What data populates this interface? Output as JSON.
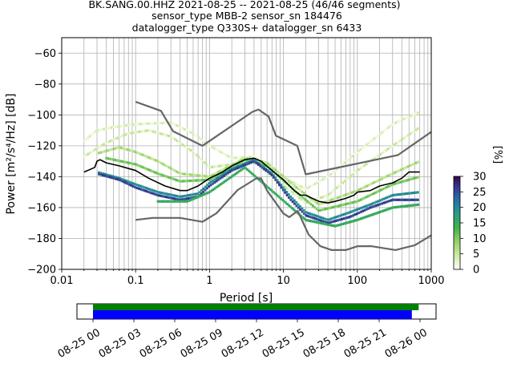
{
  "title_lines": [
    "BK.SANG.00.HHZ   2021-08-25 -- 2021-08-25  (46/46 segments)",
    "sensor_type MBB-2 sensor_sn 184476",
    "datalogger_type Q330S+ datalogger_sn 6433"
  ],
  "colors": {
    "noise_model": "#666666",
    "mode_line": "#000000",
    "grid": "#b0b0b0",
    "timeline_data": "#0000ff",
    "timeline_gaps": "#008000"
  },
  "chart_data": {
    "type": "heatmap",
    "xlabel": "Period [s]",
    "ylabel": "Power [m²/s⁴/Hz] [dB]",
    "x_scale": "log",
    "xlim": [
      0.01,
      1000
    ],
    "ylim": [
      -200,
      -50
    ],
    "x_ticks": [
      {
        "value": 0.01,
        "label": "0.01"
      },
      {
        "value": 0.1,
        "label": "0.1"
      },
      {
        "value": 1,
        "label": "1"
      },
      {
        "value": 10,
        "label": "10"
      },
      {
        "value": 100,
        "label": "100"
      },
      {
        "value": 1000,
        "label": "1000"
      }
    ],
    "y_ticks": [
      -60,
      -80,
      -100,
      -120,
      -140,
      -160,
      -180,
      -200
    ],
    "grid": true,
    "colorbar": {
      "label": "[%]",
      "range": [
        0,
        30
      ],
      "ticks": [
        0,
        5,
        10,
        15,
        20,
        25,
        30
      ]
    },
    "high_noise_model": [
      [
        0.1,
        -91.5
      ],
      [
        0.22,
        -97.4
      ],
      [
        0.32,
        -110.5
      ],
      [
        0.8,
        -120
      ],
      [
        3.8,
        -98
      ],
      [
        4.6,
        -96.5
      ],
      [
        6.3,
        -101
      ],
      [
        7.9,
        -113.5
      ],
      [
        15.4,
        -120
      ],
      [
        20,
        -138.5
      ],
      [
        354.8,
        -126
      ],
      [
        1000,
        -111
      ]
    ],
    "low_noise_model": [
      [
        0.1,
        -168
      ],
      [
        0.17,
        -166.7
      ],
      [
        0.4,
        -166.7
      ],
      [
        0.8,
        -169.2
      ],
      [
        1.24,
        -163.7
      ],
      [
        2.4,
        -148.6
      ],
      [
        4.3,
        -141.1
      ],
      [
        5,
        -141.1
      ],
      [
        6,
        -149
      ],
      [
        10,
        -163.8
      ],
      [
        12,
        -166.2
      ],
      [
        15.6,
        -162.1
      ],
      [
        21.9,
        -177.5
      ],
      [
        31.6,
        -185
      ],
      [
        45,
        -187.5
      ],
      [
        70,
        -187.5
      ],
      [
        101,
        -185
      ],
      [
        154,
        -185
      ],
      [
        328,
        -187.5
      ],
      [
        600,
        -184.4
      ],
      [
        1000,
        -178
      ]
    ],
    "mode_line": [
      [
        0.02,
        -137
      ],
      [
        0.025,
        -135
      ],
      [
        0.028,
        -134
      ],
      [
        0.03,
        -130
      ],
      [
        0.033,
        -129
      ],
      [
        0.04,
        -131
      ],
      [
        0.06,
        -133
      ],
      [
        0.1,
        -136
      ],
      [
        0.15,
        -141
      ],
      [
        0.25,
        -146
      ],
      [
        0.4,
        -149
      ],
      [
        0.5,
        -149
      ],
      [
        0.7,
        -146
      ],
      [
        1,
        -141
      ],
      [
        1.5,
        -137
      ],
      [
        2,
        -133
      ],
      [
        3,
        -129
      ],
      [
        4,
        -128
      ],
      [
        5,
        -130
      ],
      [
        7,
        -136
      ],
      [
        10,
        -142
      ],
      [
        14,
        -149
      ],
      [
        17,
        -152
      ],
      [
        20,
        -152
      ],
      [
        30,
        -156
      ],
      [
        40,
        -157
      ],
      [
        50,
        -156
      ],
      [
        70,
        -154
      ],
      [
        90,
        -152
      ],
      [
        100,
        -150
      ],
      [
        150,
        -149
      ],
      [
        200,
        -146
      ],
      [
        300,
        -144
      ],
      [
        400,
        -141
      ],
      [
        500,
        -137
      ],
      [
        700,
        -137
      ]
    ],
    "psd_bands": [
      {
        "intensity": 0.15,
        "points": [
          [
            0.02,
            -117
          ],
          [
            0.03,
            -110
          ],
          [
            0.05,
            -108
          ],
          [
            0.1,
            -106
          ],
          [
            0.3,
            -105
          ],
          [
            0.6,
            -112
          ],
          [
            1,
            -120
          ],
          [
            2,
            -128
          ],
          [
            4,
            -127
          ],
          [
            8,
            -138
          ],
          [
            20,
            -148
          ],
          [
            40,
            -140
          ],
          [
            100,
            -124
          ],
          [
            300,
            -106
          ],
          [
            700,
            -98
          ]
        ]
      },
      {
        "intensity": 0.2,
        "points": [
          [
            0.02,
            -127
          ],
          [
            0.04,
            -118
          ],
          [
            0.08,
            -112
          ],
          [
            0.15,
            -110
          ],
          [
            0.3,
            -114
          ],
          [
            0.6,
            -124
          ],
          [
            1,
            -134
          ],
          [
            2,
            -132
          ],
          [
            4,
            -130
          ],
          [
            8,
            -142
          ],
          [
            20,
            -157
          ],
          [
            40,
            -152
          ],
          [
            100,
            -136
          ],
          [
            300,
            -120
          ],
          [
            700,
            -108
          ]
        ]
      },
      {
        "intensity": 0.3,
        "points": [
          [
            0.03,
            -125
          ],
          [
            0.06,
            -121
          ],
          [
            0.1,
            -124
          ],
          [
            0.2,
            -130
          ],
          [
            0.4,
            -138
          ],
          [
            1,
            -140
          ],
          [
            3,
            -128
          ],
          [
            6,
            -131
          ],
          [
            15,
            -147
          ],
          [
            30,
            -158
          ],
          [
            100,
            -149
          ],
          [
            300,
            -138
          ],
          [
            700,
            -130
          ]
        ]
      },
      {
        "intensity": 0.4,
        "points": [
          [
            0.04,
            -128
          ],
          [
            0.1,
            -132
          ],
          [
            0.2,
            -138
          ],
          [
            0.4,
            -143
          ],
          [
            1,
            -142
          ],
          [
            3,
            -129
          ],
          [
            6,
            -133
          ],
          [
            15,
            -150
          ],
          [
            30,
            -162
          ],
          [
            100,
            -156
          ],
          [
            300,
            -145
          ],
          [
            700,
            -140
          ]
        ]
      },
      {
        "intensity": 0.7,
        "points": [
          [
            0.03,
            -137
          ],
          [
            0.06,
            -141
          ],
          [
            0.1,
            -145
          ],
          [
            0.2,
            -150
          ],
          [
            0.4,
            -153
          ],
          [
            0.7,
            -151
          ],
          [
            1,
            -144
          ],
          [
            2,
            -135
          ],
          [
            4,
            -129
          ],
          [
            7,
            -138
          ],
          [
            12,
            -152
          ],
          [
            20,
            -163
          ],
          [
            40,
            -168
          ],
          [
            80,
            -163
          ],
          [
            150,
            -158
          ],
          [
            300,
            -152
          ],
          [
            700,
            -150
          ]
        ]
      },
      {
        "intensity": 0.9,
        "points": [
          [
            0.03,
            -138
          ],
          [
            0.06,
            -142
          ],
          [
            0.1,
            -147
          ],
          [
            0.2,
            -152
          ],
          [
            0.4,
            -155
          ],
          [
            0.7,
            -153
          ],
          [
            1,
            -146
          ],
          [
            2,
            -136
          ],
          [
            4,
            -130
          ],
          [
            7,
            -139
          ],
          [
            12,
            -154
          ],
          [
            20,
            -165
          ],
          [
            40,
            -170
          ],
          [
            80,
            -166
          ],
          [
            150,
            -160
          ],
          [
            300,
            -155
          ],
          [
            700,
            -155
          ]
        ]
      },
      {
        "intensity": 0.55,
        "points": [
          [
            0.2,
            -156
          ],
          [
            0.5,
            -156
          ],
          [
            1,
            -150
          ],
          [
            3,
            -134
          ],
          [
            20,
            -168
          ],
          [
            50,
            -172
          ],
          [
            100,
            -168
          ],
          [
            300,
            -160
          ],
          [
            700,
            -158
          ]
        ]
      }
    ]
  },
  "timeline": {
    "tick_labels": [
      "08-25 00",
      "08-25 03",
      "08-25 06",
      "08-25 09",
      "08-25 12",
      "08-25 15",
      "08-25 18",
      "08-25 21",
      "08-26 00"
    ],
    "data_coverage_hours": [
      0,
      23.4
    ],
    "gaps_coverage_hours": [
      0,
      23.9
    ]
  }
}
